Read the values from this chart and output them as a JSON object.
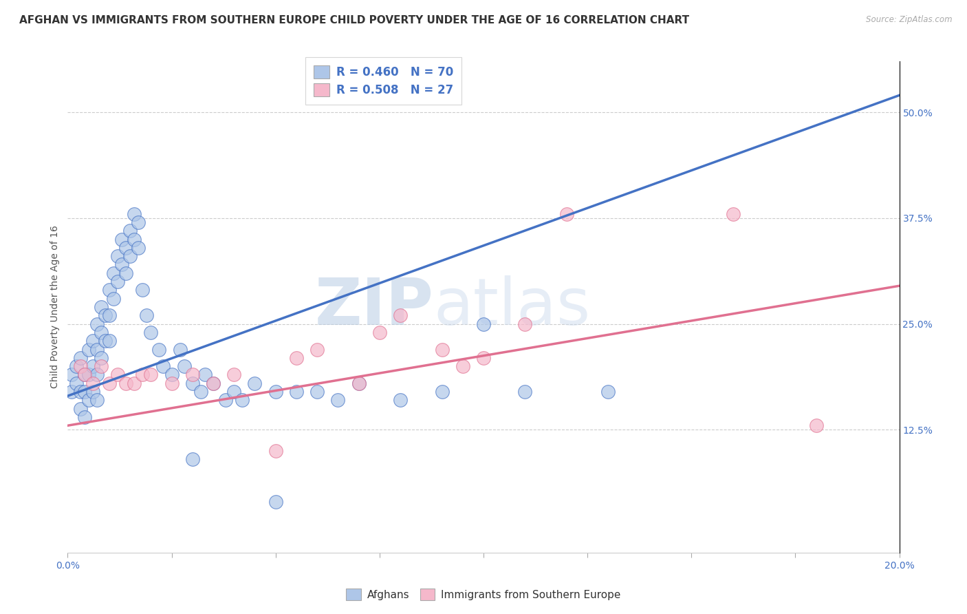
{
  "title": "AFGHAN VS IMMIGRANTS FROM SOUTHERN EUROPE CHILD POVERTY UNDER THE AGE OF 16 CORRELATION CHART",
  "source_text": "Source: ZipAtlas.com",
  "ylabel": "Child Poverty Under the Age of 16",
  "xlim": [
    0.0,
    0.2
  ],
  "ylim": [
    -0.02,
    0.56
  ],
  "xticks": [
    0.0,
    0.025,
    0.05,
    0.075,
    0.1,
    0.125,
    0.15,
    0.175,
    0.2
  ],
  "ytick_labels_right": [
    "12.5%",
    "25.0%",
    "37.5%",
    "50.0%"
  ],
  "ytick_positions_right": [
    0.125,
    0.25,
    0.375,
    0.5
  ],
  "blue_color": "#aec6e8",
  "pink_color": "#f5b8cb",
  "blue_line_color": "#4472c4",
  "pink_line_color": "#e07090",
  "legend_label_blue": "Afghans",
  "legend_label_pink": "Immigrants from Southern Europe",
  "watermark_zip": "ZIP",
  "watermark_atlas": "atlas",
  "blue_scatter_x": [
    0.001,
    0.001,
    0.002,
    0.002,
    0.003,
    0.003,
    0.003,
    0.004,
    0.004,
    0.004,
    0.005,
    0.005,
    0.005,
    0.006,
    0.006,
    0.006,
    0.007,
    0.007,
    0.007,
    0.007,
    0.008,
    0.008,
    0.008,
    0.009,
    0.009,
    0.01,
    0.01,
    0.01,
    0.011,
    0.011,
    0.012,
    0.012,
    0.013,
    0.013,
    0.014,
    0.014,
    0.015,
    0.015,
    0.016,
    0.016,
    0.017,
    0.017,
    0.018,
    0.019,
    0.02,
    0.022,
    0.023,
    0.025,
    0.027,
    0.028,
    0.03,
    0.032,
    0.033,
    0.035,
    0.038,
    0.04,
    0.042,
    0.045,
    0.05,
    0.055,
    0.06,
    0.065,
    0.07,
    0.08,
    0.09,
    0.1,
    0.11,
    0.13,
    0.03,
    0.05
  ],
  "blue_scatter_y": [
    0.19,
    0.17,
    0.2,
    0.18,
    0.21,
    0.17,
    0.15,
    0.19,
    0.17,
    0.14,
    0.22,
    0.19,
    0.16,
    0.23,
    0.2,
    0.17,
    0.25,
    0.22,
    0.19,
    0.16,
    0.27,
    0.24,
    0.21,
    0.26,
    0.23,
    0.29,
    0.26,
    0.23,
    0.31,
    0.28,
    0.33,
    0.3,
    0.35,
    0.32,
    0.34,
    0.31,
    0.36,
    0.33,
    0.38,
    0.35,
    0.37,
    0.34,
    0.29,
    0.26,
    0.24,
    0.22,
    0.2,
    0.19,
    0.22,
    0.2,
    0.18,
    0.17,
    0.19,
    0.18,
    0.16,
    0.17,
    0.16,
    0.18,
    0.17,
    0.17,
    0.17,
    0.16,
    0.18,
    0.16,
    0.17,
    0.25,
    0.17,
    0.17,
    0.09,
    0.04
  ],
  "pink_scatter_x": [
    0.003,
    0.004,
    0.006,
    0.008,
    0.01,
    0.012,
    0.014,
    0.016,
    0.018,
    0.02,
    0.025,
    0.03,
    0.035,
    0.04,
    0.05,
    0.055,
    0.06,
    0.07,
    0.075,
    0.08,
    0.09,
    0.095,
    0.1,
    0.11,
    0.12,
    0.16,
    0.18
  ],
  "pink_scatter_y": [
    0.2,
    0.19,
    0.18,
    0.2,
    0.18,
    0.19,
    0.18,
    0.18,
    0.19,
    0.19,
    0.18,
    0.19,
    0.18,
    0.19,
    0.1,
    0.21,
    0.22,
    0.18,
    0.24,
    0.26,
    0.22,
    0.2,
    0.21,
    0.25,
    0.38,
    0.38,
    0.13
  ],
  "blue_trend_x": [
    0.0,
    0.2
  ],
  "blue_trend_y": [
    0.165,
    0.52
  ],
  "pink_trend_x": [
    0.0,
    0.2
  ],
  "pink_trend_y": [
    0.13,
    0.295
  ],
  "background_color": "#ffffff",
  "grid_color": "#cccccc",
  "title_fontsize": 11,
  "axis_label_fontsize": 10,
  "tick_fontsize": 10,
  "legend_fontsize": 12
}
